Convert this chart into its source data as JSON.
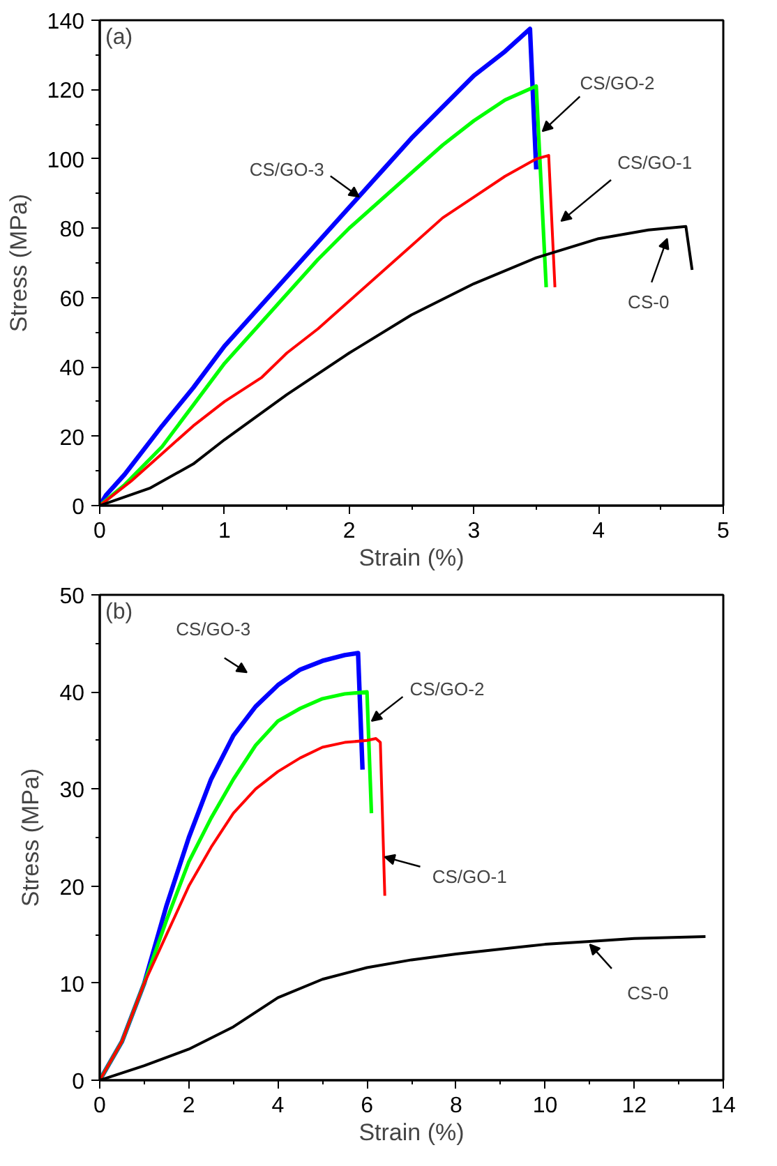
{
  "chart_data": [
    {
      "type": "line",
      "xlabel": "Strain (%)",
      "ylabel": "Stress (MPa)",
      "annotations": [
        "(a)"
      ],
      "xlim": [
        0,
        5
      ],
      "ylim": [
        0,
        140
      ],
      "xticks": [
        0,
        1,
        2,
        3,
        4,
        5
      ],
      "yticks": [
        0,
        20,
        40,
        60,
        80,
        100,
        120,
        140
      ],
      "grid": false,
      "legend": false,
      "marker": "none",
      "line_style": "solid",
      "series": [
        {
          "name": "CS/GO-3",
          "color": "#0000ff",
          "x": [
            0,
            0.05,
            0.2,
            0.5,
            0.75,
            1,
            1.25,
            1.5,
            1.75,
            2,
            2.25,
            2.5,
            2.75,
            3,
            3.25,
            3.45,
            3.5
          ],
          "values": [
            0,
            3,
            9,
            23,
            34,
            46,
            56,
            66,
            76,
            86,
            96,
            106,
            115,
            124,
            131,
            137.5,
            97
          ]
        },
        {
          "name": "CS/GO-2",
          "color": "#00ff00",
          "x": [
            0,
            0.2,
            0.5,
            0.75,
            1,
            1.25,
            1.5,
            1.75,
            2,
            2.25,
            2.5,
            2.75,
            3,
            3.25,
            3.5,
            3.58
          ],
          "values": [
            0,
            6,
            17,
            29,
            41,
            51,
            61,
            71,
            80,
            88,
            96,
            104,
            111,
            117,
            121,
            63
          ]
        },
        {
          "name": "CS/GO-1",
          "color": "#ff0000",
          "x": [
            0,
            0.25,
            0.5,
            0.75,
            1,
            1.3,
            1.5,
            1.75,
            2,
            2.25,
            2.5,
            2.75,
            3,
            3.25,
            3.5,
            3.6,
            3.65
          ],
          "values": [
            0,
            7,
            15,
            23,
            30,
            37,
            44,
            51,
            59,
            67,
            75,
            83,
            89,
            95,
            100,
            101,
            63
          ]
        },
        {
          "name": "CS-0",
          "color": "#000000",
          "x": [
            0,
            0.4,
            0.75,
            1,
            1.5,
            2,
            2.5,
            3,
            3.5,
            4,
            4.4,
            4.7,
            4.75
          ],
          "values": [
            0,
            5,
            12,
            19,
            32,
            44,
            55,
            64,
            71.5,
            77,
            79.5,
            80.5,
            68
          ]
        }
      ]
    },
    {
      "type": "line",
      "xlabel": "Strain (%)",
      "ylabel": "Stress (MPa)",
      "annotations": [
        "(b)"
      ],
      "xlim": [
        0,
        14
      ],
      "ylim": [
        0,
        50
      ],
      "xticks": [
        0,
        2,
        4,
        6,
        8,
        10,
        12,
        14
      ],
      "yticks": [
        0,
        10,
        20,
        30,
        40,
        50
      ],
      "grid": false,
      "legend": false,
      "marker": "none",
      "line_style": "solid",
      "series": [
        {
          "name": "CS/GO-3",
          "color": "#0000ff",
          "x": [
            0,
            0.5,
            1,
            1.5,
            2,
            2.5,
            3,
            3.5,
            4,
            4.5,
            5,
            5.5,
            5.8,
            5.9
          ],
          "values": [
            0,
            4,
            10,
            18,
            25,
            31,
            35.5,
            38.5,
            40.7,
            42.3,
            43.2,
            43.8,
            44,
            32
          ]
        },
        {
          "name": "CS/GO-2",
          "color": "#00ff00",
          "x": [
            0,
            0.5,
            1,
            1.5,
            2,
            2.5,
            3,
            3.5,
            4,
            4.5,
            5,
            5.5,
            6,
            6.1
          ],
          "values": [
            0,
            4,
            10,
            16.5,
            22.5,
            27,
            31,
            34.5,
            37,
            38.3,
            39.3,
            39.8,
            40,
            27.5
          ]
        },
        {
          "name": "CS/GO-1",
          "color": "#ff0000",
          "x": [
            0,
            0.5,
            1,
            1.5,
            2,
            2.5,
            3,
            3.5,
            4,
            4.5,
            5,
            5.5,
            6,
            6.2,
            6.3,
            6.4
          ],
          "values": [
            0,
            4,
            10,
            15,
            20,
            24,
            27.5,
            30,
            31.8,
            33.2,
            34.3,
            34.8,
            35,
            35.2,
            34.8,
            19
          ]
        },
        {
          "name": "CS-0",
          "color": "#000000",
          "x": [
            0,
            1,
            2,
            3,
            4,
            5,
            6,
            7,
            8,
            9,
            10,
            11,
            12,
            13.6
          ],
          "values": [
            0,
            1.5,
            3.2,
            5.5,
            8.5,
            10.4,
            11.6,
            12.4,
            13,
            13.5,
            14,
            14.3,
            14.6,
            14.8
          ]
        }
      ]
    }
  ]
}
